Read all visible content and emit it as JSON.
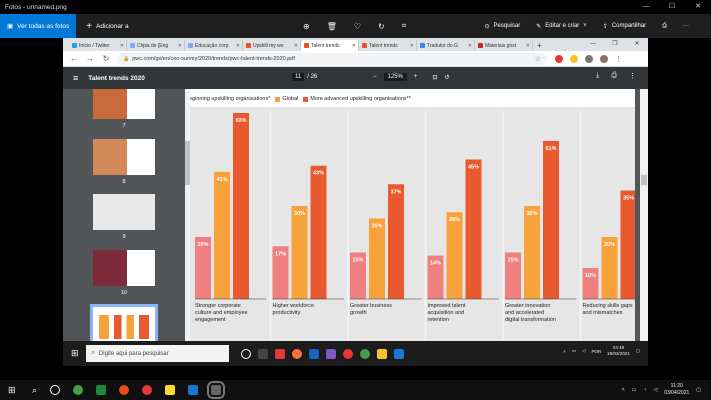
{
  "photos": {
    "title": "Fotos - unnamed.png",
    "see_all": "Ver todas as fotos",
    "add": "Adicionar a",
    "search": "Pesquisar",
    "edit": "Editar e criar",
    "share": "Compartilhar"
  },
  "browser": {
    "tabs": [
      {
        "label": "Início / Twitter",
        "color": "#1da1f2"
      },
      {
        "label": "Clipia de [Eng",
        "color": "#7baaf7"
      },
      {
        "label": "Educação corp",
        "color": "#7baaf7"
      },
      {
        "label": "Upskill my wo",
        "color": "#e7541e"
      },
      {
        "label": "Talent trends",
        "color": "#e7541e",
        "active": true
      },
      {
        "label": "Talent trends",
        "color": "#e7541e"
      },
      {
        "label": "Tradutor do G",
        "color": "#4285f4"
      },
      {
        "label": "Materiais gost",
        "color": "#c62828"
      }
    ],
    "url": "pwc.com/gx/en/ceo-survey/2020/trends/pwc-talent-trends-2020.pdf"
  },
  "pdf": {
    "title": "Talent trends 2020",
    "page_current": "11",
    "page_total": "/ 26",
    "zoom": "125%",
    "thumbs": [
      {
        "num": "7",
        "bg": "#c96a3a"
      },
      {
        "num": "8",
        "bg": "#d28a5a"
      },
      {
        "num": "9",
        "bg": "#e9e9e9"
      },
      {
        "num": "10",
        "bg": "#7d2b3a"
      },
      {
        "num": "11",
        "bg": "#ffffff"
      }
    ]
  },
  "chart_data": {
    "type": "bar",
    "legend": {
      "truncated_label": "eginning upskilling organisations*",
      "global_label": "Global",
      "advanced_label": "More advanced upskilling organisations**"
    },
    "colors": {
      "beginning": "#f08080",
      "global": "#f7a23b",
      "advanced": "#e8592f"
    },
    "categories": [
      {
        "lines": [
          "Stronger corporate",
          "culture and employee",
          "engagement"
        ]
      },
      {
        "lines": [
          "Higher workforce",
          "productivity"
        ]
      },
      {
        "lines": [
          "Greater business",
          "growth"
        ]
      },
      {
        "lines": [
          "Improved talent",
          "acquisition and",
          "retention"
        ]
      },
      {
        "lines": [
          "Greater innovation",
          "and accelerated",
          "digital transformation"
        ]
      },
      {
        "lines": [
          "Reducing skills gaps",
          "and mismatches"
        ]
      }
    ],
    "series": [
      {
        "key": "beginning",
        "values": [
          20,
          17,
          15,
          14,
          15,
          10
        ]
      },
      {
        "key": "global",
        "values": [
          41,
          30,
          26,
          28,
          30,
          20
        ]
      },
      {
        "key": "advanced",
        "values": [
          60,
          43,
          37,
          45,
          51,
          35
        ]
      }
    ],
    "unit": "%"
  },
  "innertask": {
    "search": "Digite aqui para pesquisar",
    "lang": "POR",
    "time": "04:48",
    "date": "28/02/2021"
  },
  "taskbar": {
    "time": "11:20",
    "date": "03/04/2021"
  }
}
